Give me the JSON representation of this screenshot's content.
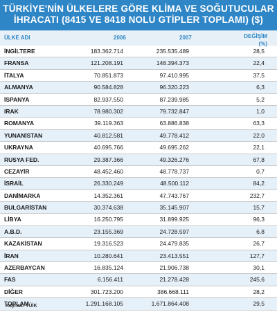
{
  "chart_data": {
    "type": "table",
    "title_line1": "TÜRKİYE'NİN ÜLKELERE GÖRE KLİMA VE SOĞUTUCULAR",
    "title_line2": "İHRACATI (8415 VE 8418 NOLU GTİPLER TOPLAMI) ($)",
    "columns": [
      "ÜLKE ADI",
      "2006",
      "2007",
      "DEĞİŞİM\n(%)"
    ],
    "rows": [
      {
        "country": "İNGİLTERE",
        "v2006": "183.362.714",
        "v2007": "235.535.489",
        "change": "28,5"
      },
      {
        "country": "FRANSA",
        "v2006": "121.208.191",
        "v2007": "148.394.373",
        "change": "22,4"
      },
      {
        "country": "İTALYA",
        "v2006": "70.851.873",
        "v2007": "97.410.995",
        "change": "37,5"
      },
      {
        "country": "ALMANYA",
        "v2006": "90.584.828",
        "v2007": "96.320.223",
        "change": "6,3"
      },
      {
        "country": "İSPANYA",
        "v2006": "82.937.550",
        "v2007": "87.239.985",
        "change": "5,2"
      },
      {
        "country": "IRAK",
        "v2006": "78.980.302",
        "v2007": "79.732.847",
        "change": "1,0"
      },
      {
        "country": "ROMANYA",
        "v2006": "39.119.363",
        "v2007": "63.886.838",
        "change": "63,3"
      },
      {
        "country": "YUNANİSTAN",
        "v2006": "40.812.581",
        "v2007": "49.778.412",
        "change": "22,0"
      },
      {
        "country": "UKRAYNA",
        "v2006": "40.695.766",
        "v2007": "49.695.262",
        "change": "22,1"
      },
      {
        "country": "RUSYA FED.",
        "v2006": "29.387.366",
        "v2007": "49.326.276",
        "change": "67,8"
      },
      {
        "country": "CEZAYİR",
        "v2006": "48.452.460",
        "v2007": "48.778.737",
        "change": "0,7"
      },
      {
        "country": "İSRAİL",
        "v2006": "26.330.249",
        "v2007": "48.500.112",
        "change": "84,2"
      },
      {
        "country": "DANİMARKA",
        "v2006": "14.352.361",
        "v2007": "47.743.767",
        "change": "232,7"
      },
      {
        "country": "BULGARİSTAN",
        "v2006": "30.374.638",
        "v2007": "35.145.907",
        "change": "15,7"
      },
      {
        "country": "LİBYA",
        "v2006": "16.250.795",
        "v2007": "31.899.925",
        "change": "96,3"
      },
      {
        "country": "A.B.D.",
        "v2006": "23.155.369",
        "v2007": "24.728.597",
        "change": "6,8"
      },
      {
        "country": "KAZAKİSTAN",
        "v2006": "19.316.523",
        "v2007": "24.479.835",
        "change": "26,7"
      },
      {
        "country": "İRAN",
        "v2006": "10.280.641",
        "v2007": "23.413.551",
        "change": "127,7"
      },
      {
        "country": "AZERBAYCAN",
        "v2006": "16.835.124",
        "v2007": "21.906.738",
        "change": "30,1"
      },
      {
        "country": "FAS",
        "v2006": "6.156.411",
        "v2007": "21.278.428",
        "change": "245,6"
      },
      {
        "country": "DİĞER",
        "v2006": "301.723.200",
        "v2007": "386.668.111",
        "change": "28,2"
      },
      {
        "country": "TOPLAM",
        "v2006": "1.291.168.105",
        "v2007": "1.671.864.408",
        "change": "29,5"
      }
    ],
    "source": "Kaynak: TÜİK"
  },
  "colors": {
    "header_bg": "#2e86c6",
    "alt_row_bg": "#e6f0f8"
  }
}
